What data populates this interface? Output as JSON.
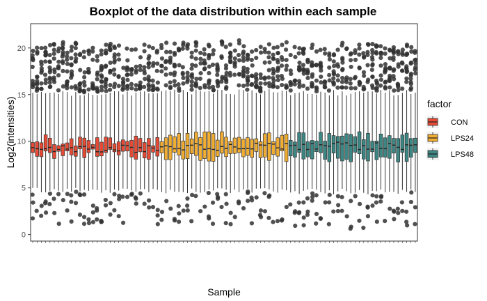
{
  "chart_data": {
    "type": "boxplot",
    "title": "Boxplot of the data distribution within each sample",
    "xlabel": "Sample",
    "ylabel": "Log2(intensities)",
    "ylim": [
      -0.7,
      22.6
    ],
    "y_ticks": [
      0,
      5,
      10,
      15,
      20
    ],
    "grid": false,
    "panel_border": true,
    "legend": {
      "title": "factor",
      "position": "right",
      "entries": [
        {
          "label": "CON",
          "color": "#E64B35"
        },
        {
          "label": "LPS24",
          "color": "#F0AD32"
        },
        {
          "label": "LPS48",
          "color": "#3C8683"
        }
      ]
    },
    "groups": [
      {
        "factor": "CON",
        "n_samples": 30,
        "q1": 8.6,
        "median": 9.2,
        "q3": 10.1,
        "whisker_low": 4.7,
        "whisker_high": 15.1
      },
      {
        "factor": "LPS24",
        "n_samples": 30,
        "q1": 8.4,
        "median": 9.4,
        "q3": 10.5,
        "whisker_low": 4.7,
        "whisker_high": 15.3
      },
      {
        "factor": "LPS48",
        "n_samples": 30,
        "q1": 8.3,
        "median": 9.5,
        "q3": 10.5,
        "whisker_low": 4.6,
        "whisker_high": 15.2
      }
    ],
    "outlier_color": "#333333"
  }
}
